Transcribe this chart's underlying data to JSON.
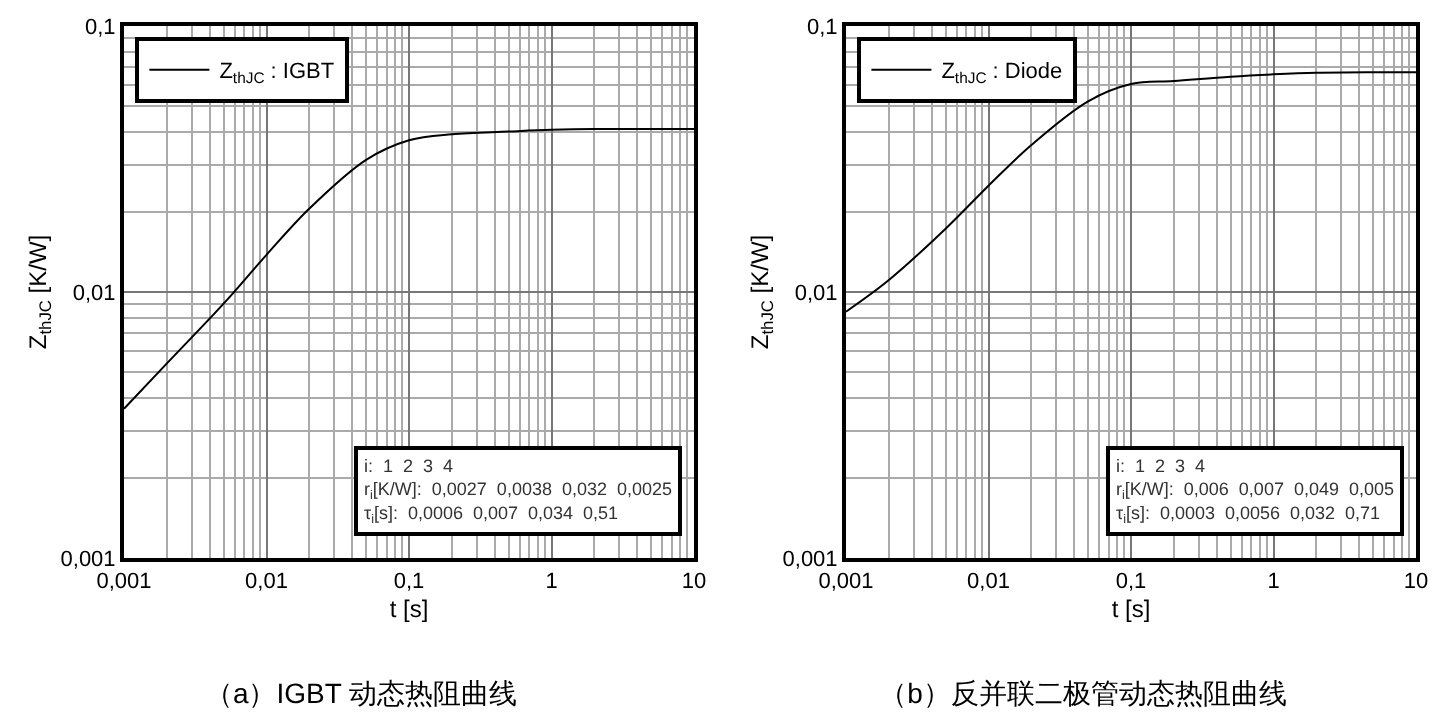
{
  "chart_data": [
    {
      "type": "line",
      "title": "（a）IGBT 动态热阻曲线",
      "xlabel": "t [s]",
      "ylabel": "Z$_{thJC}$ [K/W]",
      "x": [
        0.001,
        0.002,
        0.005,
        0.01,
        0.02,
        0.05,
        0.1,
        0.2,
        0.5,
        1,
        2,
        5,
        10
      ],
      "series": [
        {
          "name": "Z$_{thJC}$ : IGBT",
          "color": "#000000",
          "values": [
            0.00364,
            0.00539,
            0.00904,
            0.0138,
            0.0206,
            0.0314,
            0.0372,
            0.0392,
            0.0401,
            0.0407,
            0.041,
            0.041,
            0.041
          ]
        }
      ],
      "log": "xy",
      "xlim": [
        0.001,
        10
      ],
      "ylim": [
        0.001,
        0.1
      ],
      "xticks": [
        {
          "value": 0.001,
          "label": "0,001"
        },
        {
          "value": 0.01,
          "label": "0,01"
        },
        {
          "value": 0.1,
          "label": "0,1"
        },
        {
          "value": 1,
          "label": "1"
        },
        {
          "value": 10,
          "label": "10"
        }
      ],
      "yticks": [
        {
          "value": 0.001,
          "label": "0,001"
        },
        {
          "value": 0.01,
          "label": "0,01"
        },
        {
          "value": 0.1,
          "label": "0,1"
        }
      ],
      "grid": true,
      "legend": "top left",
      "marker": "none",
      "line_style": "solid",
      "annotations": [
        "i:  1  2  3  4",
        "r$_{i}$[K/W]:  0,0027  0,0038  0,032  0,0025",
        "τ$_{i}$[s]:  0,0006  0,007  0,034  0,51"
      ]
    },
    {
      "type": "line",
      "title": "（b）反并联二极管动态热阻曲线",
      "xlabel": "t [s]",
      "ylabel": "Z$_{thJC}$ [K/W]",
      "x": [
        0.001,
        0.002,
        0.005,
        0.01,
        0.02,
        0.05,
        0.1,
        0.2,
        0.5,
        1,
        2,
        5,
        10
      ],
      "series": [
        {
          "name": "Z$_{thJC}$ : Diode",
          "color": "#000000",
          "values": [
            0.00844,
            0.0111,
            0.0173,
            0.0251,
            0.0357,
            0.0521,
            0.0605,
            0.0621,
            0.0645,
            0.0658,
            0.0667,
            0.067,
            0.067
          ]
        }
      ],
      "log": "xy",
      "xlim": [
        0.001,
        10
      ],
      "ylim": [
        0.001,
        0.1
      ],
      "xticks": [
        {
          "value": 0.001,
          "label": "0,001"
        },
        {
          "value": 0.01,
          "label": "0,01"
        },
        {
          "value": 0.1,
          "label": "0,1"
        },
        {
          "value": 1,
          "label": "1"
        },
        {
          "value": 10,
          "label": "10"
        }
      ],
      "yticks": [
        {
          "value": 0.001,
          "label": "0,001"
        },
        {
          "value": 0.01,
          "label": "0,01"
        },
        {
          "value": 0.1,
          "label": "0,1"
        }
      ],
      "grid": true,
      "legend": "top left",
      "marker": "none",
      "line_style": "solid",
      "annotations": [
        "i:  1  2  3  4",
        "r$_{i}$[K/W]:  0,006  0,007  0,049  0,005",
        "τ$_{i}$[s]:  0,0003  0,0056  0,032  0,71"
      ]
    }
  ]
}
